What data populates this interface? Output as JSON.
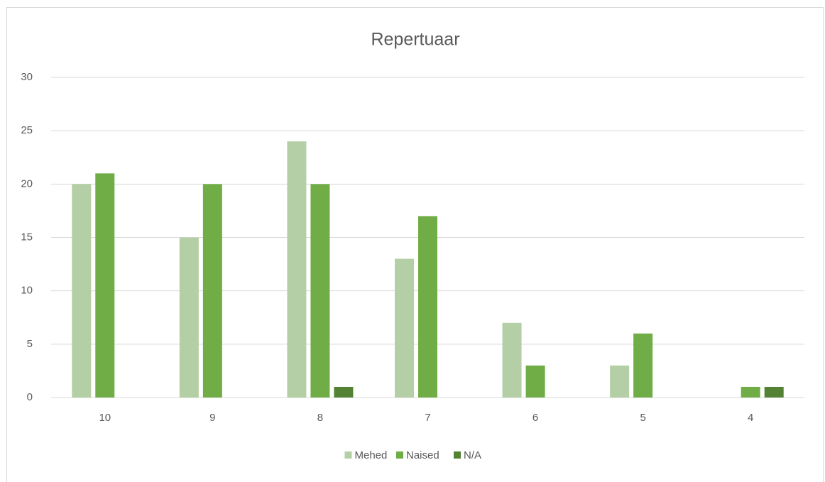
{
  "chart_data": {
    "type": "bar",
    "title": "Repertuaar",
    "categories": [
      "10",
      "9",
      "8",
      "7",
      "6",
      "5",
      "4"
    ],
    "series": [
      {
        "name": "Mehed",
        "color": "#b4cfa5",
        "values": [
          20,
          15,
          24,
          13,
          7,
          3,
          0
        ]
      },
      {
        "name": "Naised",
        "color": "#70ad47",
        "values": [
          21,
          20,
          20,
          17,
          3,
          6,
          1
        ]
      },
      {
        "name": "N/A",
        "color": "#548235",
        "values": [
          0,
          0,
          1,
          0,
          0,
          0,
          1
        ]
      }
    ],
    "ylim": [
      0,
      30
    ],
    "yticks": [
      0,
      5,
      10,
      15,
      20,
      25,
      30
    ],
    "grid": true,
    "legend": "bottom"
  }
}
